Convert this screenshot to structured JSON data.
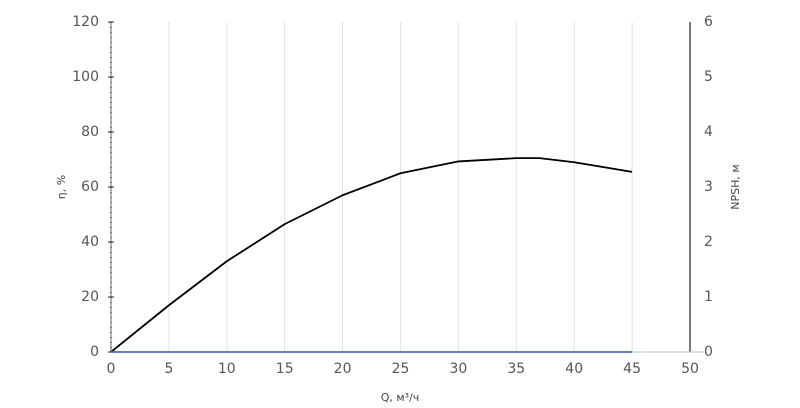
{
  "chart_data": {
    "type": "line",
    "x": [
      0,
      5,
      10,
      15,
      20,
      25,
      30,
      35,
      37,
      40,
      45
    ],
    "series": [
      {
        "color": "#000000",
        "values": [
          0,
          17,
          33,
          46.5,
          57,
          65,
          69.3,
          70.5,
          70.5,
          69,
          65.5
        ]
      },
      {
        "color": "#4a6fb5",
        "axis": "y2",
        "values": [
          0,
          0,
          0,
          0,
          0,
          0,
          0,
          0,
          0,
          0,
          0
        ]
      }
    ],
    "xlim": [
      0,
      50
    ],
    "xticks": [
      0,
      5,
      10,
      15,
      20,
      25,
      30,
      35,
      40,
      45,
      50
    ],
    "ylim": [
      0,
      120
    ],
    "yticks": [
      0,
      20,
      40,
      60,
      80,
      100,
      120
    ],
    "y2lim": [
      0,
      6
    ],
    "y2ticks": [
      0,
      1,
      2,
      3,
      4,
      5,
      6
    ],
    "xlabel": "Q, м³/ч",
    "ylabel": "η, %",
    "y2label": "NPSH, м",
    "grid": true
  }
}
